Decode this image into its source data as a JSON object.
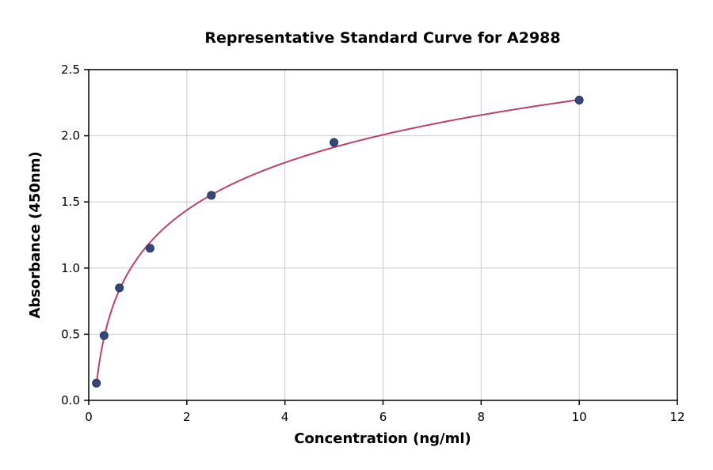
{
  "chart_data": {
    "type": "scatter",
    "title": "Representative Standard Curve for A2988",
    "xlabel": "Concentration (ng/ml)",
    "ylabel": "Absorbance (450nm)",
    "xlim": [
      0,
      12
    ],
    "ylim": [
      0,
      2.5
    ],
    "xticks": [
      0,
      2,
      4,
      6,
      8,
      10,
      12
    ],
    "xtick_labels": [
      "0",
      "2",
      "4",
      "6",
      "8",
      "10",
      "12"
    ],
    "yticks": [
      0.0,
      0.5,
      1.0,
      1.5,
      2.0,
      2.5
    ],
    "ytick_labels": [
      "0.0",
      "0.5",
      "1.0",
      "1.5",
      "2.0",
      "2.5"
    ],
    "grid": true,
    "legend": "none",
    "points": [
      {
        "x": 0.156,
        "y": 0.13
      },
      {
        "x": 0.313,
        "y": 0.49
      },
      {
        "x": 0.625,
        "y": 0.85
      },
      {
        "x": 1.25,
        "y": 1.15
      },
      {
        "x": 2.5,
        "y": 1.55
      },
      {
        "x": 5.0,
        "y": 1.95
      },
      {
        "x": 10.0,
        "y": 2.27
      }
    ],
    "fit_curve": {
      "type": "logarithmic",
      "equation": "y = a*ln(x) + b",
      "a": 0.5185,
      "b": 1.0785,
      "x_start": 0.156,
      "x_end": 10.0
    },
    "colors": {
      "curve": "#bd4168",
      "marker_fill": "#35477d",
      "marker_edge": "#233158",
      "grid": "#cccccc",
      "frame": "#000000",
      "text": "#000000",
      "background": "#ffffff"
    }
  }
}
